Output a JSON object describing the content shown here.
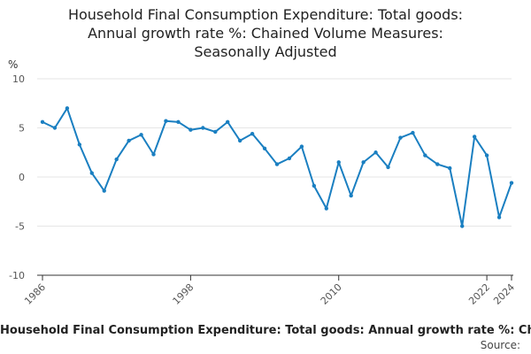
{
  "title_lines": [
    "Household Final Consumption Expenditure: Total goods:",
    "Annual growth rate %: Chained Volume Measures:",
    "Seasonally Adjusted"
  ],
  "unit_label": "%",
  "legend_text": "Household Final Consumption Expenditure: Total goods: Annual growth rate %: Chained Volume Measures: Seasonally Adjusted",
  "source_label": "Source:",
  "colors": {
    "series": "#1a7fc1",
    "axis": "#333333",
    "grid": "#e5e5e5",
    "tick_text": "#555555"
  },
  "chart_data": {
    "type": "line",
    "title": "Household Final Consumption Expenditure: Total goods: Annual growth rate %: Chained Volume Measures: Seasonally Adjusted",
    "ylabel": "%",
    "xlabel": "",
    "ylim": [
      -10,
      10
    ],
    "yticks": [
      -10,
      -5,
      0,
      5,
      10
    ],
    "xlim": [
      1986,
      2024
    ],
    "xticks": [
      1986,
      1998,
      2010,
      2022,
      2024
    ],
    "grid": true,
    "series": [
      {
        "name": "Household Final Consumption Expenditure: Total goods: Annual growth rate %: Chained Volume Measures: Seasonally Adjusted",
        "x": [
          1986,
          1987,
          1988,
          1989,
          1990,
          1991,
          1992,
          1993,
          1994,
          1995,
          1996,
          1997,
          1998,
          1999,
          2000,
          2001,
          2002,
          2003,
          2004,
          2005,
          2006,
          2007,
          2008,
          2009,
          2010,
          2011,
          2012,
          2013,
          2014,
          2015,
          2016,
          2017,
          2018,
          2019,
          2020,
          2021,
          2022,
          2023,
          2024
        ],
        "values": [
          5.6,
          5.0,
          7.0,
          3.3,
          0.4,
          -1.4,
          1.8,
          3.7,
          4.3,
          2.3,
          5.7,
          5.6,
          4.8,
          5.0,
          4.6,
          5.6,
          3.7,
          4.4,
          2.9,
          1.3,
          1.9,
          3.1,
          -0.9,
          -3.2,
          1.5,
          -1.9,
          1.5,
          2.5,
          1.0,
          4.0,
          4.5,
          2.2,
          1.3,
          0.9,
          -5.0,
          4.1,
          2.2,
          -4.1,
          -0.6
        ]
      }
    ]
  }
}
